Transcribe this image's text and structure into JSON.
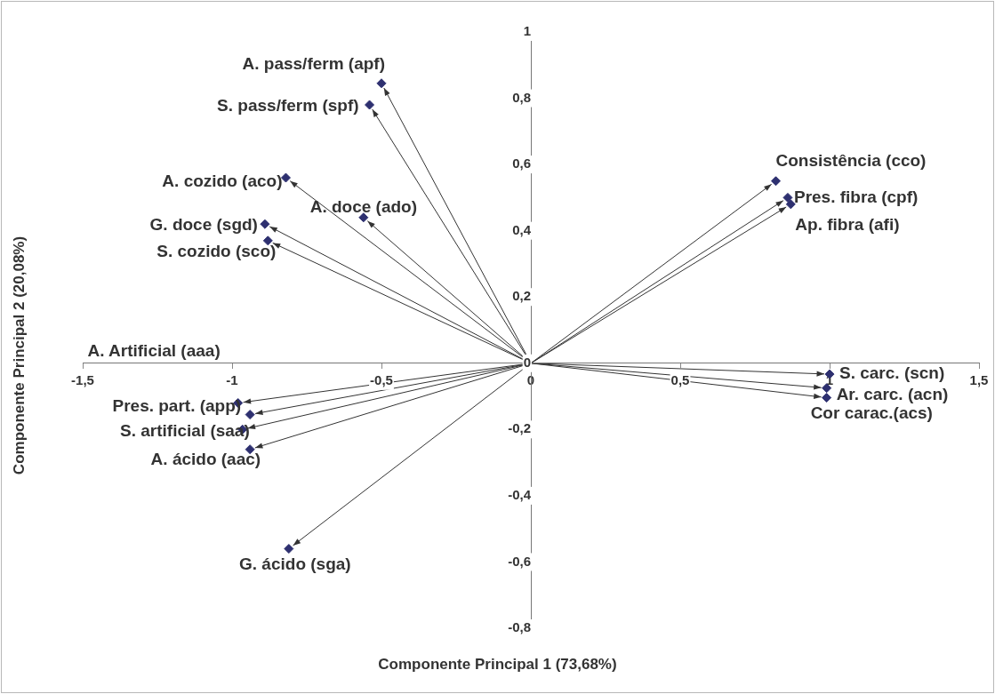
{
  "chart_data": {
    "type": "scatter",
    "xlabel": "Componente Principal 1 (73,68%)",
    "ylabel": "Componente Principal 2 (20,08%)",
    "x": [
      -0.5,
      -0.54,
      -0.82,
      -0.56,
      -0.89,
      -0.88,
      0.82,
      0.86,
      0.87,
      -0.98,
      -0.94,
      -0.965,
      -0.94,
      -0.81,
      1.0,
      0.99,
      0.99
    ],
    "series": [
      {
        "color": "#2e3070",
        "values": [
          0.845,
          0.78,
          0.56,
          0.44,
          0.42,
          0.37,
          0.55,
          0.5,
          0.48,
          -0.12,
          -0.155,
          -0.2,
          -0.26,
          -0.56,
          -0.033,
          -0.075,
          -0.104
        ]
      }
    ],
    "marker": "diamond",
    "legend": false,
    "grid": false,
    "xlim": [
      -1.5,
      1.5
    ],
    "ylim": [
      -0.8,
      1
    ],
    "xticks": [
      {
        "value": -1.5,
        "label": "-1,5"
      },
      -1,
      {
        "value": -0.5,
        "label": "-0,5"
      },
      0,
      {
        "value": 0.5,
        "label": "0,5"
      },
      1,
      {
        "value": 1.5,
        "label": "1,5"
      }
    ],
    "yticks": [
      {
        "value": -0.8,
        "label": "-0,8"
      },
      {
        "value": -0.6,
        "label": "-0,6"
      },
      {
        "value": -0.4,
        "label": "-0,4"
      },
      {
        "value": -0.2,
        "label": "-0,2"
      },
      0,
      {
        "value": 0.2,
        "label": "0,2"
      },
      {
        "value": 0.4,
        "label": "0,4"
      },
      {
        "value": 0.6,
        "label": "0,6"
      },
      {
        "value": 0.8,
        "label": "0,8"
      },
      1
    ],
    "annotations": [
      {
        "text": "A. pass/ferm (apf)",
        "x": -0.5,
        "y": 0.845
      },
      {
        "text": "S. pass/ferm (spf)",
        "x": -0.54,
        "y": 0.78
      },
      {
        "text": "A. cozido (aco)",
        "x": -0.82,
        "y": 0.56
      },
      {
        "text": "A. doce (ado)",
        "x": -0.56,
        "y": 0.44
      },
      {
        "text": "G. doce (sgd)",
        "x": -0.89,
        "y": 0.42
      },
      {
        "text": "S. cozido (sco)",
        "x": -0.88,
        "y": 0.37
      },
      {
        "text": "Consistência (cco)",
        "x": 0.82,
        "y": 0.55
      },
      {
        "text": "Pres. fibra (cpf)",
        "x": 0.86,
        "y": 0.5
      },
      {
        "text": "Ap. fibra (afi)",
        "x": 0.87,
        "y": 0.48
      },
      {
        "text": "A. Artificial (aaa)",
        "x": -0.98,
        "y": -0.12
      },
      {
        "text": "Pres. part. (app)",
        "x": -0.94,
        "y": -0.155
      },
      {
        "text": "S. artificial (saa)",
        "x": -0.965,
        "y": -0.2
      },
      {
        "text": "A. ácido (aac)",
        "x": -0.94,
        "y": -0.26
      },
      {
        "text": "G. ácido (sga)",
        "x": -0.81,
        "y": -0.56
      },
      {
        "text": "S. carc. (scn)",
        "x": 1.0,
        "y": -0.033
      },
      {
        "text": "Ar. carc. (acn)",
        "x": 0.99,
        "y": -0.075
      },
      {
        "text": "Cor carac.(acs)",
        "x": 0.99,
        "y": -0.104
      }
    ]
  }
}
